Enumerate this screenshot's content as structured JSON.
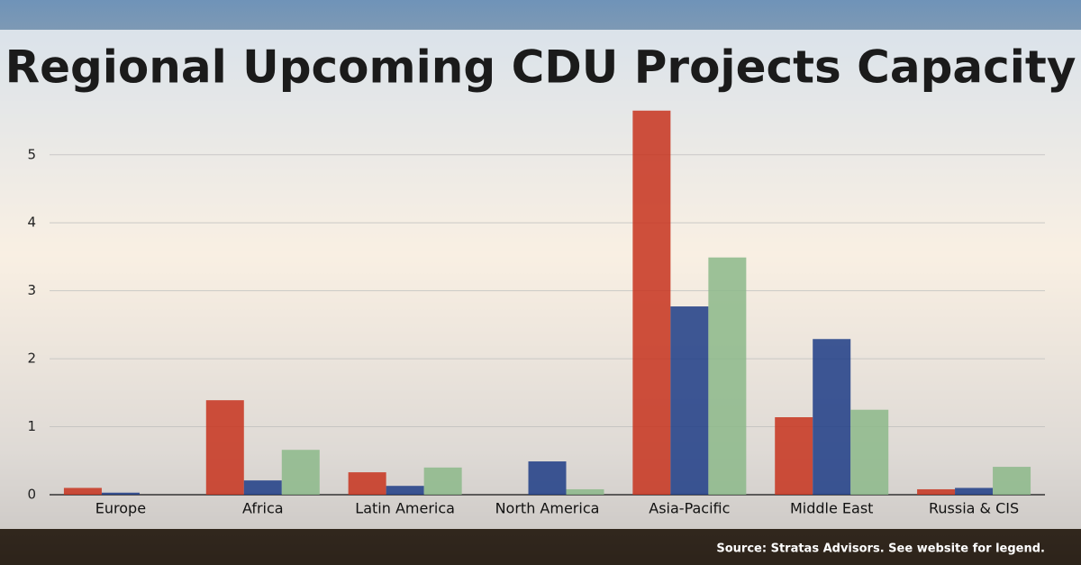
{
  "chart_data": {
    "type": "bar",
    "title": "Regional Upcoming CDU Projects Capacity",
    "source": "Source: Stratas Advisors. See website for legend.",
    "categories": [
      "Europe",
      "Africa",
      "Latin America",
      "North America",
      "Asia-Pacific",
      "Middle East",
      "Russia & CIS"
    ],
    "series": [
      {
        "color": "#c7321d",
        "values": [
          0.1,
          1.39,
          0.33,
          0,
          5.65,
          1.14,
          0.08
        ]
      },
      {
        "color": "#1d3c86",
        "values": [
          0.03,
          0.21,
          0.13,
          0.49,
          2.77,
          2.29,
          0.1
        ]
      },
      {
        "color": "#8cb889",
        "values": [
          0,
          0.66,
          0.4,
          0.08,
          3.49,
          1.25,
          0.41
        ]
      }
    ],
    "ylim": [
      0,
      5.7
    ],
    "yticks": [
      0,
      1,
      2,
      3,
      4,
      5
    ],
    "grid": true
  }
}
